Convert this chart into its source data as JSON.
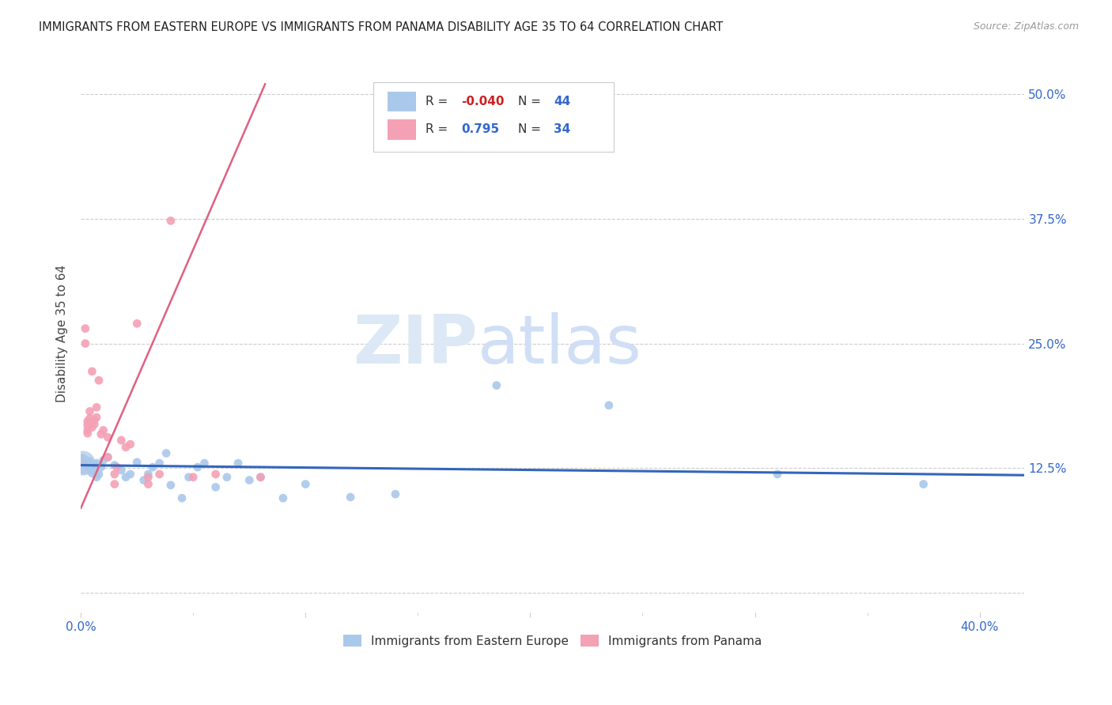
{
  "title": "IMMIGRANTS FROM EASTERN EUROPE VS IMMIGRANTS FROM PANAMA DISABILITY AGE 35 TO 64 CORRELATION CHART",
  "source": "Source: ZipAtlas.com",
  "ylabel": "Disability Age 35 to 64",
  "xlim": [
    0.0,
    0.42
  ],
  "ylim": [
    -0.02,
    0.54
  ],
  "legend_label_blue": "Immigrants from Eastern Europe",
  "legend_label_pink": "Immigrants from Panama",
  "r_blue": "-0.040",
  "n_blue": "44",
  "r_pink": "0.795",
  "n_pink": "34",
  "blue_color": "#aac8ea",
  "pink_color": "#f4a0b5",
  "blue_line_color": "#3366bb",
  "pink_line_color": "#e06080",
  "watermark_zip": "ZIP",
  "watermark_atlas": "atlas",
  "watermark_color": "#dce8f5",
  "blue_dots": [
    [
      0.001,
      0.135
    ],
    [
      0.002,
      0.13
    ],
    [
      0.003,
      0.128
    ],
    [
      0.003,
      0.126
    ],
    [
      0.004,
      0.13
    ],
    [
      0.004,
      0.132
    ],
    [
      0.005,
      0.12
    ],
    [
      0.005,
      0.126
    ],
    [
      0.006,
      0.122
    ],
    [
      0.006,
      0.128
    ],
    [
      0.007,
      0.116
    ],
    [
      0.007,
      0.13
    ],
    [
      0.008,
      0.119
    ],
    [
      0.009,
      0.126
    ],
    [
      0.01,
      0.133
    ],
    [
      0.012,
      0.136
    ],
    [
      0.015,
      0.128
    ],
    [
      0.018,
      0.123
    ],
    [
      0.02,
      0.116
    ],
    [
      0.022,
      0.119
    ],
    [
      0.025,
      0.131
    ],
    [
      0.028,
      0.113
    ],
    [
      0.03,
      0.119
    ],
    [
      0.032,
      0.126
    ],
    [
      0.035,
      0.13
    ],
    [
      0.038,
      0.14
    ],
    [
      0.04,
      0.108
    ],
    [
      0.045,
      0.095
    ],
    [
      0.048,
      0.116
    ],
    [
      0.052,
      0.126
    ],
    [
      0.055,
      0.13
    ],
    [
      0.06,
      0.106
    ],
    [
      0.065,
      0.116
    ],
    [
      0.07,
      0.13
    ],
    [
      0.075,
      0.113
    ],
    [
      0.08,
      0.116
    ],
    [
      0.09,
      0.095
    ],
    [
      0.1,
      0.109
    ],
    [
      0.12,
      0.096
    ],
    [
      0.14,
      0.099
    ],
    [
      0.185,
      0.208
    ],
    [
      0.235,
      0.188
    ],
    [
      0.31,
      0.119
    ],
    [
      0.375,
      0.109
    ]
  ],
  "pink_dots": [
    [
      0.001,
      0.13
    ],
    [
      0.002,
      0.265
    ],
    [
      0.002,
      0.25
    ],
    [
      0.003,
      0.16
    ],
    [
      0.003,
      0.172
    ],
    [
      0.003,
      0.168
    ],
    [
      0.003,
      0.163
    ],
    [
      0.004,
      0.182
    ],
    [
      0.004,
      0.175
    ],
    [
      0.005,
      0.166
    ],
    [
      0.005,
      0.222
    ],
    [
      0.006,
      0.173
    ],
    [
      0.006,
      0.169
    ],
    [
      0.007,
      0.186
    ],
    [
      0.007,
      0.176
    ],
    [
      0.008,
      0.213
    ],
    [
      0.009,
      0.159
    ],
    [
      0.01,
      0.163
    ],
    [
      0.012,
      0.156
    ],
    [
      0.012,
      0.136
    ],
    [
      0.015,
      0.109
    ],
    [
      0.015,
      0.119
    ],
    [
      0.016,
      0.126
    ],
    [
      0.018,
      0.153
    ],
    [
      0.02,
      0.146
    ],
    [
      0.022,
      0.149
    ],
    [
      0.025,
      0.27
    ],
    [
      0.03,
      0.116
    ],
    [
      0.03,
      0.109
    ],
    [
      0.035,
      0.119
    ],
    [
      0.04,
      0.373
    ],
    [
      0.05,
      0.116
    ],
    [
      0.06,
      0.119
    ],
    [
      0.08,
      0.116
    ]
  ],
  "blue_line_x": [
    0.0,
    0.42
  ],
  "blue_line_y": [
    0.128,
    0.118
  ],
  "pink_line_x": [
    0.0,
    0.082
  ],
  "pink_line_y": [
    0.085,
    0.51
  ],
  "y_ticks": [
    0.0,
    0.125,
    0.25,
    0.375,
    0.5
  ],
  "y_tick_labels": [
    "",
    "12.5%",
    "25.0%",
    "37.5%",
    "50.0%"
  ]
}
